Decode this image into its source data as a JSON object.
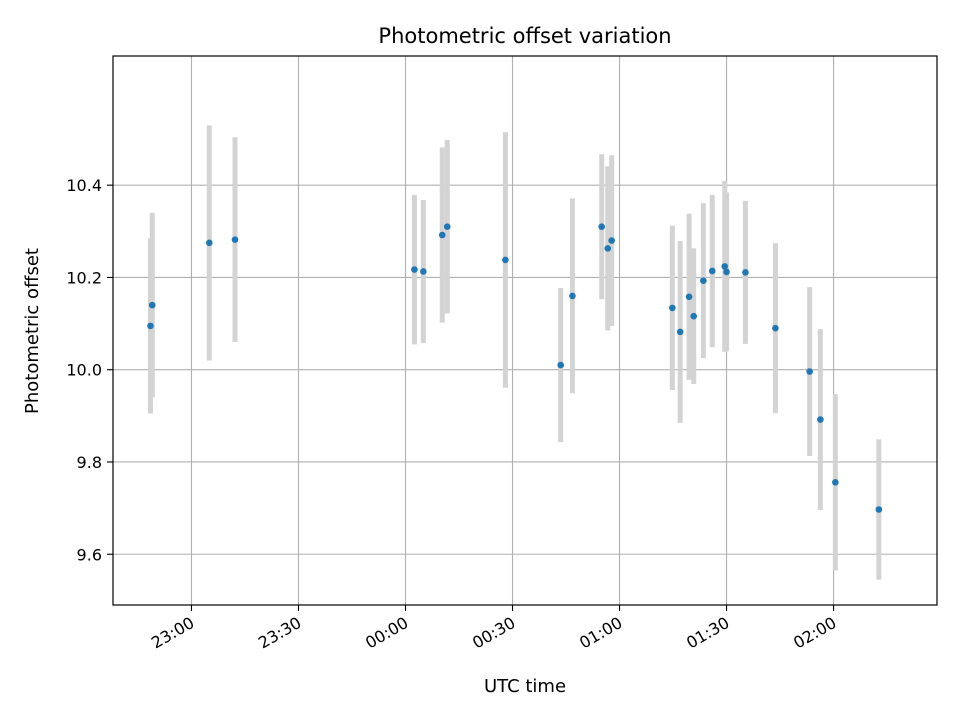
{
  "chart_data": {
    "type": "scatter",
    "title": "Photometric offset variation",
    "xlabel": "UTC time",
    "ylabel": "Photometric offset",
    "x_is_time": true,
    "x_day_boundary": "00:00",
    "xlim": [
      "22:38",
      "02:29"
    ],
    "ylim": [
      9.49,
      10.68
    ],
    "x_ticks": [
      "23:00",
      "23:30",
      "00:00",
      "00:30",
      "01:00",
      "01:30",
      "02:00"
    ],
    "y_ticks": [
      9.6,
      9.8,
      10.0,
      10.2,
      10.4
    ],
    "y_tick_labels": [
      "9.6",
      "9.8",
      "10.0",
      "10.2",
      "10.4"
    ],
    "grid": true,
    "marker_color": "#1f77b4",
    "errorbar_color": "#d3d3d3",
    "points": [
      {
        "t": "22:48.5",
        "y": 10.095,
        "err": 0.19
      },
      {
        "t": "22:49.0",
        "y": 10.14,
        "err": 0.2
      },
      {
        "t": "23:05.0",
        "y": 10.275,
        "err": 0.255
      },
      {
        "t": "23:12.2",
        "y": 10.282,
        "err": 0.222
      },
      {
        "t": "00:02.5",
        "y": 10.217,
        "err": 0.162
      },
      {
        "t": "00:05.0",
        "y": 10.213,
        "err": 0.155
      },
      {
        "t": "00:10.3",
        "y": 10.292,
        "err": 0.19
      },
      {
        "t": "00:11.7",
        "y": 10.31,
        "err": 0.188
      },
      {
        "t": "00:28.0",
        "y": 10.238,
        "err": 0.277
      },
      {
        "t": "00:43.5",
        "y": 10.01,
        "err": 0.167
      },
      {
        "t": "00:46.8",
        "y": 10.16,
        "err": 0.211
      },
      {
        "t": "00:55.0",
        "y": 10.31,
        "err": 0.157
      },
      {
        "t": "00:56.7",
        "y": 10.263,
        "err": 0.178
      },
      {
        "t": "00:57.8",
        "y": 10.28,
        "err": 0.185
      },
      {
        "t": "01:14.8",
        "y": 10.134,
        "err": 0.178
      },
      {
        "t": "01:17.0",
        "y": 10.082,
        "err": 0.197
      },
      {
        "t": "01:19.5",
        "y": 10.158,
        "err": 0.18
      },
      {
        "t": "01:20.8",
        "y": 10.116,
        "err": 0.147
      },
      {
        "t": "01:23.5",
        "y": 10.193,
        "err": 0.168
      },
      {
        "t": "01:26.0",
        "y": 10.214,
        "err": 0.165
      },
      {
        "t": "01:29.5",
        "y": 10.224,
        "err": 0.185
      },
      {
        "t": "01:30.0",
        "y": 10.212,
        "err": 0.172
      },
      {
        "t": "01:35.3",
        "y": 10.211,
        "err": 0.155
      },
      {
        "t": "01:43.7",
        "y": 10.09,
        "err": 0.184
      },
      {
        "t": "01:53.3",
        "y": 9.996,
        "err": 0.183
      },
      {
        "t": "01:56.3",
        "y": 9.892,
        "err": 0.196
      },
      {
        "t": "02:00.5",
        "y": 9.756,
        "err": 0.191
      },
      {
        "t": "02:12.7",
        "y": 9.697,
        "err": 0.152
      }
    ]
  }
}
